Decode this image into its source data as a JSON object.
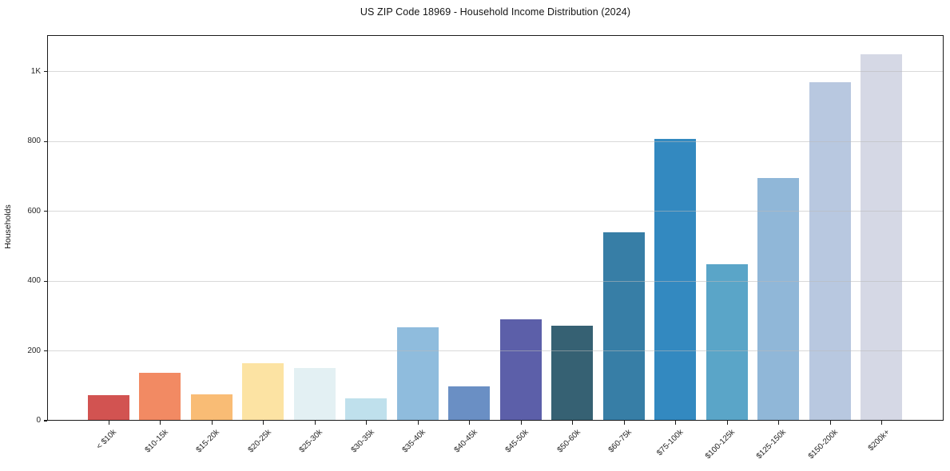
{
  "chart_data": {
    "type": "bar",
    "title": "US ZIP Code 18969 - Household Income Distribution (2024)",
    "xlabel": "",
    "ylabel": "Households",
    "categories": [
      "< $10k",
      "$10-15k",
      "$15-20k",
      "$20-25k",
      "$25-30k",
      "$30-35k",
      "$35-40k",
      "$40-45k",
      "$45-50k",
      "$50-60k",
      "$60-75k",
      "$75-100k",
      "$100-125k",
      "$125-150k",
      "$150-200k",
      "$200k+"
    ],
    "values": [
      72,
      135,
      74,
      163,
      149,
      63,
      265,
      96,
      289,
      270,
      537,
      806,
      446,
      693,
      967,
      1047
    ],
    "bar_colors": [
      "#d25351",
      "#f28a63",
      "#f9bc75",
      "#fce3a3",
      "#e3f0f3",
      "#bfe0ec",
      "#8fbcdd",
      "#6a8fc4",
      "#5c5fa9",
      "#366173",
      "#377ea6",
      "#3389c0",
      "#5aa5c8",
      "#90b7d8",
      "#b8c8e0",
      "#d5d8e5"
    ],
    "yticks": [
      {
        "value": 0,
        "label": "0"
      },
      {
        "value": 200,
        "label": "200"
      },
      {
        "value": 400,
        "label": "400"
      },
      {
        "value": 600,
        "label": "600"
      },
      {
        "value": 800,
        "label": "800"
      },
      {
        "value": 1000,
        "label": "1K"
      }
    ],
    "ylim": [
      0,
      1105
    ],
    "grid": "horizontal",
    "grid_above_bars": true,
    "legend": "none",
    "background_color": "#ffffff",
    "spine_color": "#1a1a1a"
  }
}
